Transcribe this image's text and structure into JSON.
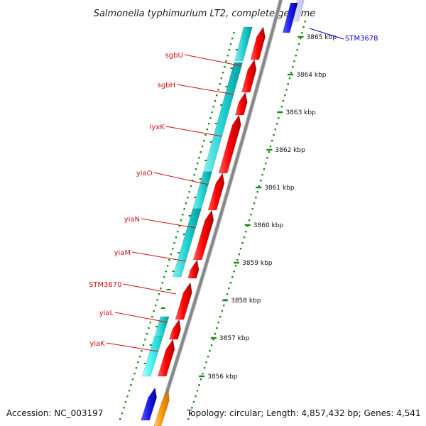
{
  "title": "Salmonella typhimurium LT2, complete genome",
  "footer": {
    "accession": "Accession: NC_003197",
    "topology": "Topology: circular; Length: 4,857,432 bp; Genes: 4,541"
  },
  "colors": {
    "forward_gene": "#ff0000",
    "reverse_gene": "#00c8c8",
    "label_left": "#d01010",
    "label_right": "#0000cc",
    "tick": "#1a8a1a",
    "backbone": "#888888",
    "gene_blue": "#1a1aee",
    "gene_orange": "#ff9900"
  },
  "ticks": {
    "labels": [
      "3865 kbp",
      "3864 kbp",
      "3863 kbp",
      "3862 kbp",
      "3861 kbp",
      "3860 kbp",
      "3859 kbp",
      "3858 kbp",
      "3857 kbp",
      "3856 kbp"
    ]
  },
  "genes_left": [
    {
      "name": "sgbU"
    },
    {
      "name": "sgbH"
    },
    {
      "name": "lyxK"
    },
    {
      "name": "yiaO"
    },
    {
      "name": "yiaN"
    },
    {
      "name": "yiaM"
    },
    {
      "name": "STM3670"
    },
    {
      "name": "yiaL"
    },
    {
      "name": "yiaK"
    }
  ],
  "genes_right": [
    {
      "name": "STM3678"
    }
  ]
}
